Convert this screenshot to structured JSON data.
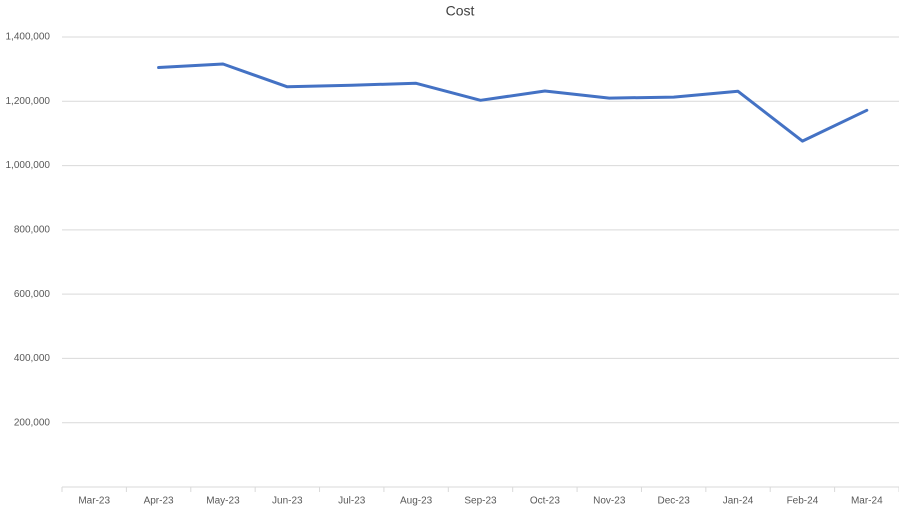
{
  "chart_data": {
    "type": "line",
    "title": "Cost",
    "categories": [
      "Mar-23",
      "Apr-23",
      "May-23",
      "Jun-23",
      "Jul-23",
      "Aug-23",
      "Sep-23",
      "Oct-23",
      "Nov-23",
      "Dec-23",
      "Jan-24",
      "Feb-24",
      "Mar-24"
    ],
    "series": [
      {
        "name": "Cost",
        "color": "#4472c4",
        "values": [
          null,
          1305000,
          1316000,
          1245000,
          1250000,
          1256000,
          1203000,
          1232000,
          1210000,
          1213000,
          1231000,
          1076000,
          1172000
        ]
      }
    ],
    "ylim": [
      0,
      1400000
    ],
    "yticks": [
      {
        "value": 200000,
        "label": "200,000"
      },
      {
        "value": 400000,
        "label": "400,000"
      },
      {
        "value": 600000,
        "label": "600,000"
      },
      {
        "value": 800000,
        "label": "800,000"
      },
      {
        "value": 1000000,
        "label": "1,000,000"
      },
      {
        "value": 1200000,
        "label": "1,200,000"
      },
      {
        "value": 1400000,
        "label": "1,400,000"
      }
    ],
    "grid": true
  }
}
